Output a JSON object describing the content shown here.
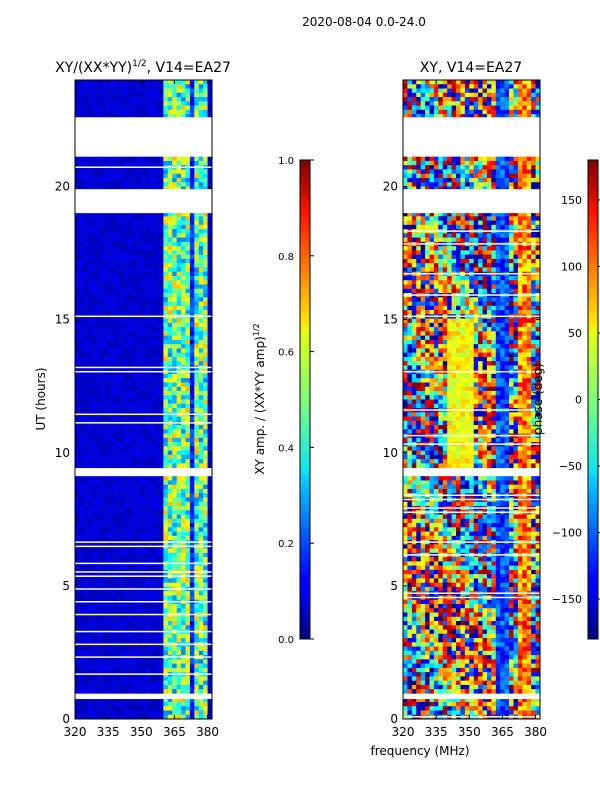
{
  "suptitle": "2020-08-04 0.0-24.0",
  "chart_data": [
    {
      "type": "heatmap",
      "title_main": "XY/(XX*YY)",
      "title_sup": "1/2",
      "title_suffix": ", V14=EA27",
      "xlabel": "",
      "ylabel": "UT (hours)",
      "xlim": [
        320,
        382
      ],
      "ylim": [
        0,
        24
      ],
      "xticks": [
        320,
        335,
        350,
        365,
        380
      ],
      "yticks": [
        0,
        5,
        10,
        15,
        20
      ],
      "colorbar": {
        "label_main": "XY amp. / (XX*YY amp)",
        "label_sup": "1/2",
        "range": [
          0.0,
          1.0
        ],
        "ticks": [
          "0.0",
          "0.2",
          "0.4",
          "0.6",
          "0.8",
          "1.0"
        ],
        "colormap": "jet"
      },
      "data_gaps_hours": [
        [
          21.2,
          22.6
        ],
        [
          19.0,
          19.9
        ],
        [
          9.2,
          9.4
        ],
        [
          0.75,
          0.95
        ]
      ],
      "bright_channel_band_mhz": [
        360,
        380
      ],
      "description_values": "low amplitude (~0.05) across most channels; elevated amplitude (0.4-0.8) in 360-380 MHz band"
    },
    {
      "type": "heatmap",
      "title": "XY, V14=EA27",
      "xlabel": "frequency (MHz)",
      "ylabel": "",
      "xlim": [
        320,
        382
      ],
      "ylim": [
        0,
        24
      ],
      "xticks": [
        320,
        335,
        350,
        365,
        380
      ],
      "yticks": [
        0,
        5,
        10,
        15,
        20
      ],
      "colorbar": {
        "label": "phase (deg)",
        "range": [
          -180,
          180
        ],
        "ticks": [
          "−150",
          "−100",
          "−50",
          "0",
          "50",
          "100",
          "150"
        ],
        "tick_values": [
          -150,
          -100,
          -50,
          0,
          50,
          100,
          150
        ],
        "colormap": "jet"
      },
      "data_gaps_hours": [
        [
          21.2,
          22.6
        ],
        [
          19.0,
          19.9
        ],
        [
          9.2,
          9.4
        ],
        [
          0.75,
          0.95
        ]
      ]
    }
  ]
}
